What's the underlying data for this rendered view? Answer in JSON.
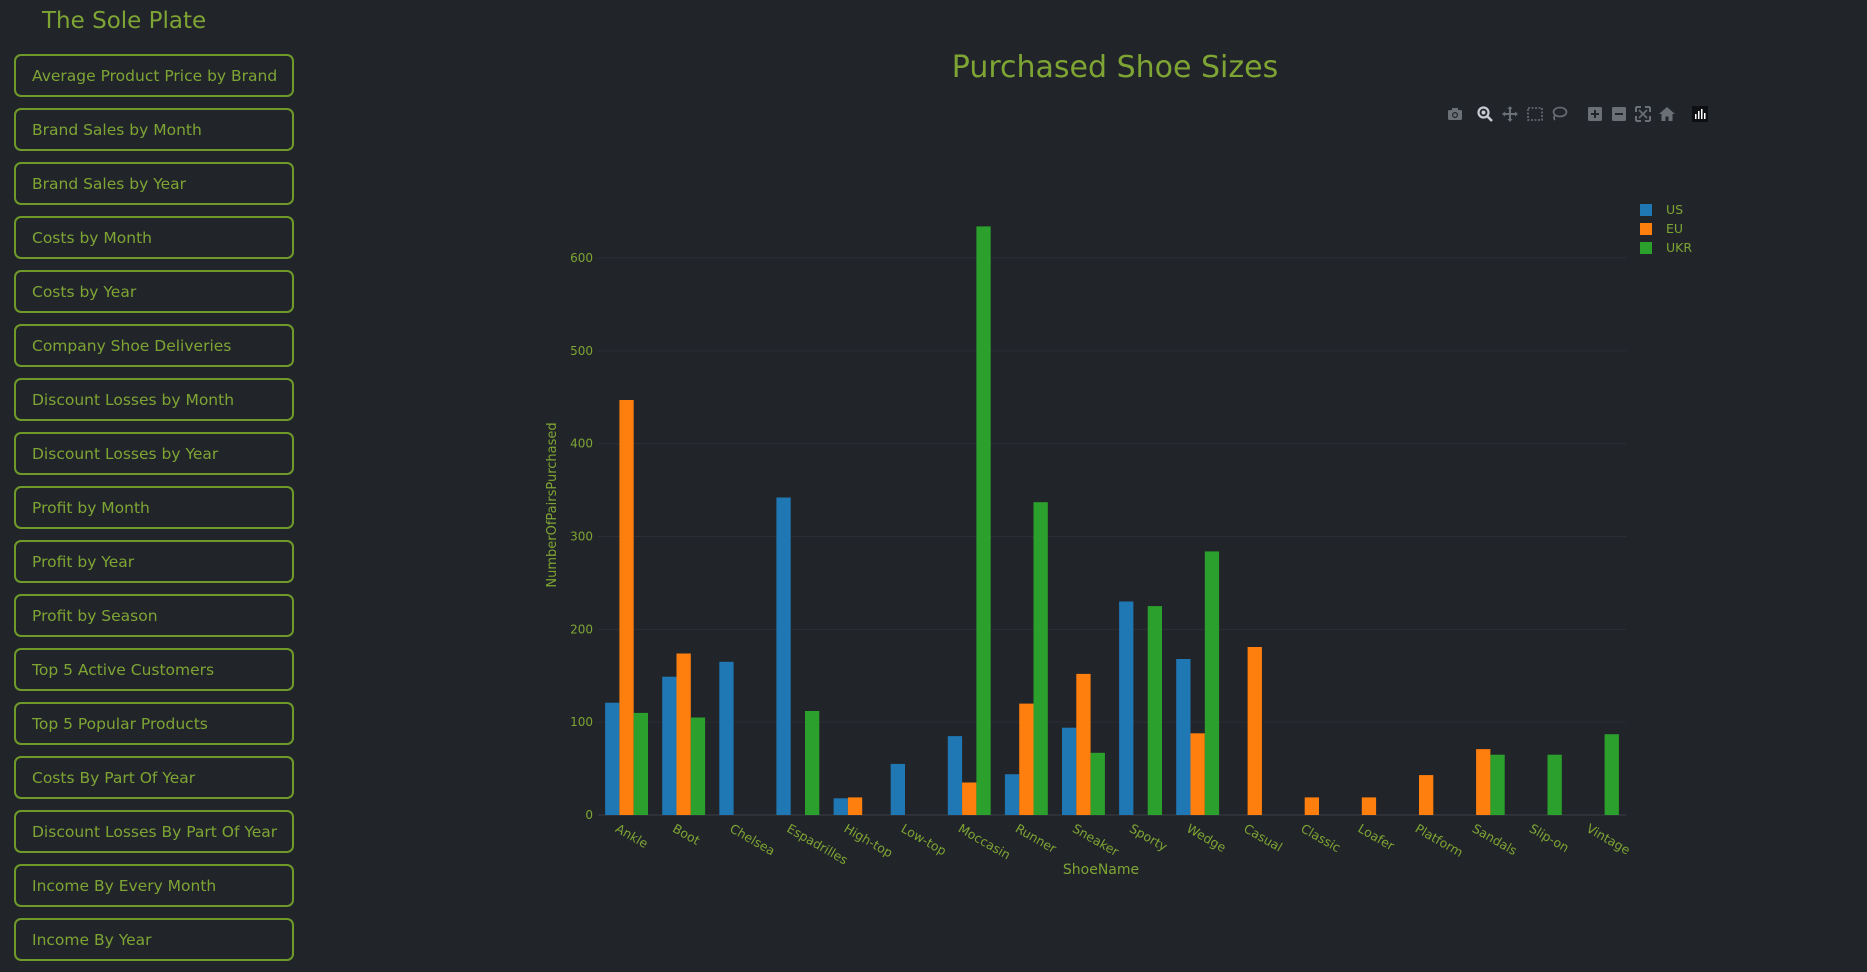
{
  "app": {
    "title": "The Sole Plate"
  },
  "sidebar": {
    "items": [
      {
        "label": "Average Product Price by Brand"
      },
      {
        "label": "Brand Sales by Month"
      },
      {
        "label": "Brand Sales by Year"
      },
      {
        "label": "Costs by Month"
      },
      {
        "label": "Costs by Year"
      },
      {
        "label": "Company Shoe Deliveries"
      },
      {
        "label": "Discount Losses by Month"
      },
      {
        "label": "Discount Losses by Year"
      },
      {
        "label": "Profit by Month"
      },
      {
        "label": "Profit by Year"
      },
      {
        "label": "Profit by Season"
      },
      {
        "label": "Top 5 Active Customers"
      },
      {
        "label": "Top 5 Popular Products"
      },
      {
        "label": "Costs By Part Of Year"
      },
      {
        "label": "Discount Losses By Part Of Year"
      },
      {
        "label": "Income By Every Month"
      },
      {
        "label": "Income By Year"
      }
    ]
  },
  "modebar": {
    "icons": [
      "camera-icon",
      "zoom-icon",
      "pan-icon",
      "box-select-icon",
      "lasso-select-icon",
      "zoom-in-icon",
      "zoom-out-icon",
      "autoscale-icon",
      "reset-axes-icon",
      "plotly-logo-icon"
    ]
  },
  "colors": {
    "US": "#1f77b4",
    "EU": "#ff7f0e",
    "UKR": "#2ca02c",
    "accent": "#7ea534",
    "background": "#212429"
  },
  "chart_data": {
    "type": "bar",
    "title": "Purchased Shoe Sizes",
    "xlabel": "ShoeName",
    "ylabel": "NumberOfPairsPurchased",
    "ylim": [
      0,
      650
    ],
    "yticks": [
      0,
      100,
      200,
      300,
      400,
      500,
      600
    ],
    "grid": true,
    "legend_position": "top-right",
    "barmode": "group",
    "categories": [
      "Ankle",
      "Boot",
      "Chelsea",
      "Espadrilles",
      "High-top",
      "Low-top",
      "Moccasin",
      "Runner",
      "Sneaker",
      "Sporty",
      "Wedge",
      "Casual",
      "Classic",
      "Loafer",
      "Platform",
      "Sandals",
      "Slip-on",
      "Vintage"
    ],
    "series": [
      {
        "name": "US",
        "color": "#1f77b4",
        "values": [
          121,
          149,
          165,
          342,
          18,
          55,
          85,
          44,
          94,
          230,
          168,
          0,
          0,
          0,
          0,
          0,
          0,
          0
        ]
      },
      {
        "name": "EU",
        "color": "#ff7f0e",
        "values": [
          447,
          174,
          0,
          0,
          19,
          0,
          35,
          120,
          152,
          0,
          88,
          181,
          19,
          19,
          43,
          71,
          0,
          0
        ]
      },
      {
        "name": "UKR",
        "color": "#2ca02c",
        "values": [
          110,
          105,
          0,
          112,
          0,
          0,
          634,
          337,
          67,
          225,
          284,
          0,
          0,
          0,
          0,
          65,
          65,
          87
        ]
      }
    ]
  }
}
